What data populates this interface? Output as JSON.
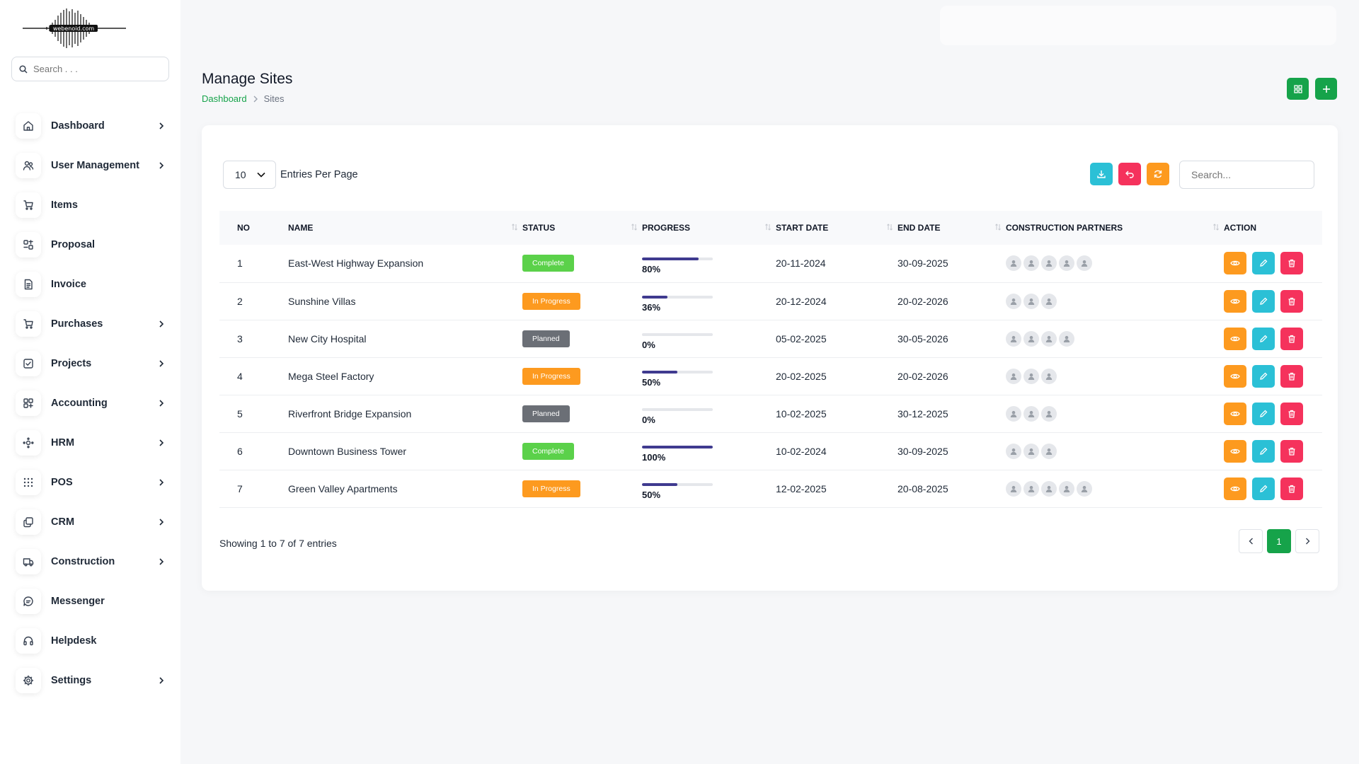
{
  "brand": {
    "logo_text": "webenoid.com"
  },
  "sidebar": {
    "search_placeholder": "Search . . .",
    "items": [
      {
        "label": "Dashboard",
        "icon": "home-icon",
        "has_submenu": true
      },
      {
        "label": "User Management",
        "icon": "users-icon",
        "has_submenu": true
      },
      {
        "label": "Items",
        "icon": "cart-icon",
        "has_submenu": false
      },
      {
        "label": "Proposal",
        "icon": "proposal-icon",
        "has_submenu": false
      },
      {
        "label": "Invoice",
        "icon": "invoice-icon",
        "has_submenu": false
      },
      {
        "label": "Purchases",
        "icon": "cart-icon",
        "has_submenu": true
      },
      {
        "label": "Projects",
        "icon": "checkbox-icon",
        "has_submenu": true
      },
      {
        "label": "Accounting",
        "icon": "grid-icon",
        "has_submenu": true
      },
      {
        "label": "HRM",
        "icon": "hrm-icon",
        "has_submenu": true
      },
      {
        "label": "POS",
        "icon": "dots-grid-icon",
        "has_submenu": true
      },
      {
        "label": "CRM",
        "icon": "layers-icon",
        "has_submenu": true
      },
      {
        "label": "Construction",
        "icon": "truck-icon",
        "has_submenu": true
      },
      {
        "label": "Messenger",
        "icon": "chat-icon",
        "has_submenu": false
      },
      {
        "label": "Helpdesk",
        "icon": "headset-icon",
        "has_submenu": false
      },
      {
        "label": "Settings",
        "icon": "gear-icon",
        "has_submenu": true
      }
    ]
  },
  "header": {
    "title": "Manage Sites",
    "breadcrumb": {
      "home": "Dashboard",
      "current": "Sites"
    }
  },
  "table_controls": {
    "per_page_value": "10",
    "per_page_label": "Entries Per Page",
    "search_placeholder": "Search..."
  },
  "columns": [
    "NO",
    "NAME",
    "STATUS",
    "PROGRESS",
    "START DATE",
    "END DATE",
    "CONSTRUCTION PARTNERS",
    "ACTION"
  ],
  "colors": {
    "accent": "#16a34a",
    "complete": "#5bd14a",
    "in_progress": "#fd9a1f",
    "planned": "#6b6f76",
    "progress_bar": "#3f3a8f",
    "view": "#fd9a1f",
    "edit": "#2bc0d6",
    "delete": "#f5325c"
  },
  "rows": [
    {
      "no": "1",
      "name": "East-West Highway Expansion",
      "status": "Complete",
      "status_key": "complete",
      "progress": 80,
      "progress_text": "80%",
      "start": "20-11-2024",
      "end": "30-09-2025",
      "partners": 5
    },
    {
      "no": "2",
      "name": "Sunshine Villas",
      "status": "In Progress",
      "status_key": "in_progress",
      "progress": 36,
      "progress_text": "36%",
      "start": "20-12-2024",
      "end": "20-02-2026",
      "partners": 3
    },
    {
      "no": "3",
      "name": "New City Hospital",
      "status": "Planned",
      "status_key": "planned",
      "progress": 0,
      "progress_text": "0%",
      "start": "05-02-2025",
      "end": "30-05-2026",
      "partners": 4
    },
    {
      "no": "4",
      "name": "Mega Steel Factory",
      "status": "In Progress",
      "status_key": "in_progress",
      "progress": 50,
      "progress_text": "50%",
      "start": "20-02-2025",
      "end": "20-02-2026",
      "partners": 3
    },
    {
      "no": "5",
      "name": "Riverfront Bridge Expansion",
      "status": "Planned",
      "status_key": "planned",
      "progress": 0,
      "progress_text": "0%",
      "start": "10-02-2025",
      "end": "30-12-2025",
      "partners": 3
    },
    {
      "no": "6",
      "name": "Downtown Business Tower",
      "status": "Complete",
      "status_key": "complete",
      "progress": 100,
      "progress_text": "100%",
      "start": "10-02-2024",
      "end": "30-09-2025",
      "partners": 3
    },
    {
      "no": "7",
      "name": "Green Valley Apartments",
      "status": "In Progress",
      "status_key": "in_progress",
      "progress": 50,
      "progress_text": "50%",
      "start": "12-02-2025",
      "end": "20-08-2025",
      "partners": 5
    }
  ],
  "footer": {
    "showing": "Showing 1 to 7 of 7 entries",
    "current_page": "1"
  }
}
